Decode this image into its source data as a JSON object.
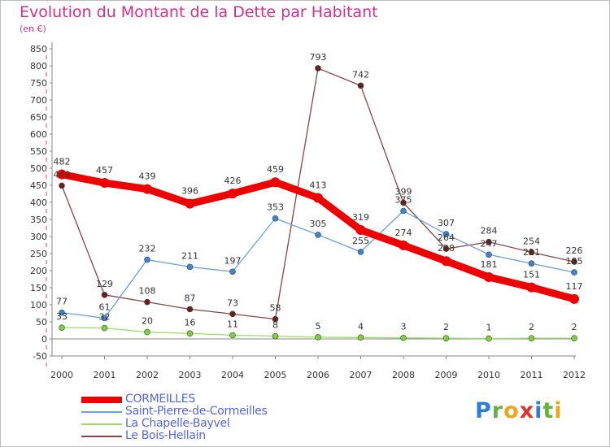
{
  "title": "Evolution du Montant de la Dette par Habitant",
  "subtitle": "(en €)",
  "logo_text": "Proxiti",
  "chart_data": {
    "type": "line",
    "title": "Evolution du Montant de la Dette par Habitant",
    "ylabel": "(en €)",
    "xlabel": "",
    "x": [
      "2000",
      "2001",
      "2002",
      "2003",
      "2004",
      "2005",
      "2006",
      "2007",
      "2008",
      "2009",
      "2010",
      "2011",
      "2012"
    ],
    "ylim": [
      -50,
      850
    ],
    "yticks": [
      -50,
      0,
      50,
      100,
      150,
      200,
      250,
      300,
      350,
      400,
      450,
      500,
      550,
      600,
      650,
      700,
      750,
      800,
      850
    ],
    "grid": false,
    "legend_position": "bottom-left",
    "series": [
      {
        "name": "CORMEILLES",
        "color": "#ee0000",
        "values": [
          482,
          457,
          439,
          396,
          426,
          459,
          413,
          319,
          274,
          228,
          181,
          151,
          117
        ]
      },
      {
        "name": "Saint-Pierre-de-Cormeilles",
        "color": "#6ea0d6",
        "values": [
          77,
          61,
          232,
          211,
          197,
          353,
          305,
          255,
          375,
          307,
          247,
          221,
          195
        ]
      },
      {
        "name": "La Chapelle-Bayvel",
        "color": "#99dd66",
        "values": [
          33,
          32,
          20,
          16,
          11,
          8,
          5,
          4,
          3,
          2,
          1,
          2,
          2
        ]
      },
      {
        "name": "Le Bois-Hellain",
        "color": "#884444",
        "values": [
          449,
          129,
          108,
          87,
          73,
          58,
          793,
          742,
          399,
          264,
          284,
          254,
          226
        ]
      }
    ]
  }
}
